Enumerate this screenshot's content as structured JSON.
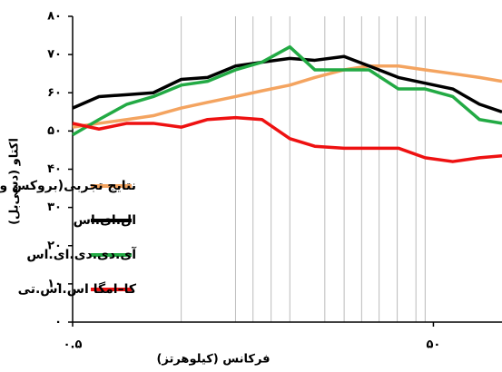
{
  "chart_data": {
    "type": "line",
    "x_log": true,
    "x_label": "فرکانس (کیلوهرتز)",
    "y_label": "اکتاو (دسی‌بل)",
    "x": [
      0.5,
      0.7,
      1,
      1.4,
      2,
      2.8,
      4,
      5.6,
      8,
      11,
      16,
      22,
      32,
      45,
      64,
      90,
      120
    ],
    "series": [
      {
        "name": "نتایج تجربی(بروکس و همکاران)",
        "color": "#f4a460",
        "values": [
          51,
          52,
          53,
          54,
          56,
          57.5,
          59,
          60.5,
          62,
          64,
          66,
          67,
          67,
          66,
          65,
          64,
          63
        ]
      },
      {
        "name": "ال.ای.اس",
        "color": "#000000",
        "values": [
          56,
          59,
          59.5,
          60,
          63.5,
          64,
          67,
          68,
          69,
          68.5,
          69.5,
          67,
          64,
          62.5,
          61,
          57,
          55
        ]
      },
      {
        "name": "آی.دی.دی.ای.اس",
        "color": "#22aa44",
        "values": [
          49,
          53,
          57,
          59,
          62,
          63,
          66,
          68,
          72,
          66,
          66,
          66,
          61,
          61,
          59,
          53,
          52
        ]
      },
      {
        "name": "کا–امگا اس.اس.تی",
        "color": "#ee1111",
        "values": [
          52,
          50.5,
          52,
          52,
          51,
          53,
          53.5,
          53,
          48,
          46,
          45.5,
          45.5,
          45.5,
          43,
          42,
          43,
          43.5
        ]
      }
    ],
    "xlim": [
      0.5,
      120
    ],
    "xticks": [
      {
        "value": 0.5,
        "label": "۰.۵"
      },
      {
        "value": 50,
        "label": "۵۰"
      }
    ],
    "xgrid": [
      2,
      4,
      5,
      6.3,
      8,
      12.5,
      16,
      20,
      25,
      31.5,
      40,
      45
    ],
    "ylim": [
      0,
      80
    ],
    "yticks": [
      {
        "value": 0,
        "label": "۰"
      },
      {
        "value": 10,
        "label": "۱۰"
      },
      {
        "value": 20,
        "label": "۲۰"
      },
      {
        "value": 30,
        "label": "۳۰"
      },
      {
        "value": 40,
        "label": "۴۰"
      },
      {
        "value": 50,
        "label": "۵۰"
      },
      {
        "value": 60,
        "label": "۶۰"
      },
      {
        "value": 70,
        "label": "۷۰"
      },
      {
        "value": 80,
        "label": "۸۰"
      }
    ],
    "legend": "lower left"
  }
}
